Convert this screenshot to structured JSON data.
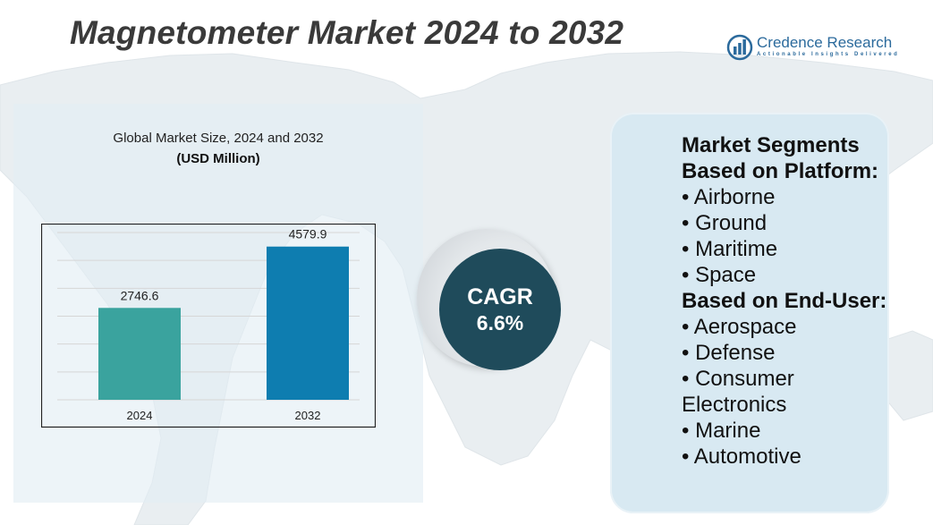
{
  "title": "Magnetometer Market 2024 to 2032",
  "logo": {
    "name": "Credence Research",
    "tagline": "Actionable Insights Delivered",
    "icon": "bar-chart-logo-icon"
  },
  "colors": {
    "bar_2024": "#3aa39e",
    "bar_2032": "#0e7db0",
    "cagr_circle": "#1f4b5b",
    "segments_panel": "#d8e9f2"
  },
  "chart_data": {
    "type": "bar",
    "title": "Global Market Size, 2024 and 2032",
    "subtitle": "(USD Million)",
    "categories": [
      "2024",
      "2032"
    ],
    "values": [
      2746.6,
      4579.9
    ],
    "data_labels": [
      "2746.6",
      "4579.9"
    ],
    "ylim": [
      0,
      5000
    ],
    "grid": true,
    "xlabel": "",
    "ylabel": ""
  },
  "cagr": {
    "label": "CAGR",
    "value": "6.6%"
  },
  "segments": {
    "platform_heading": "Market Segments Based on Platform:",
    "platform_items": [
      "• Airborne",
      "• Ground",
      "• Maritime",
      "• Space"
    ],
    "enduser_heading": "Based on End-User:",
    "enduser_items": [
      "• Aerospace",
      "• Defense",
      "• Consumer Electronics",
      "• Marine",
      "• Automotive"
    ]
  }
}
